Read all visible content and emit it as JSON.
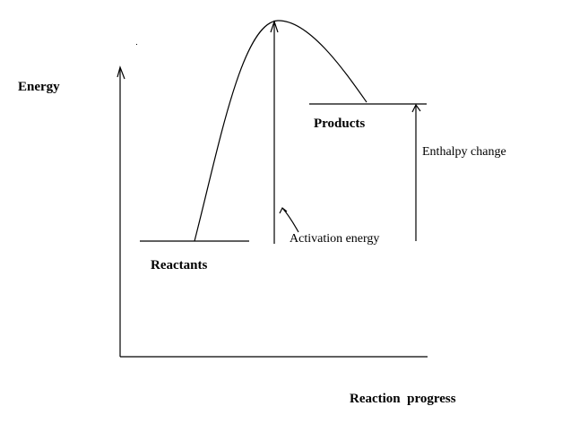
{
  "labels": {
    "energy": "Energy",
    "reaction_progress": "Reaction  progress",
    "reactants": "Reactants",
    "products": "Products",
    "activation_energy": "Activation energy",
    "enthalpy_change": "Enthalpy change"
  },
  "colors": {
    "background": "#ffffff",
    "ink": "#000000"
  }
}
